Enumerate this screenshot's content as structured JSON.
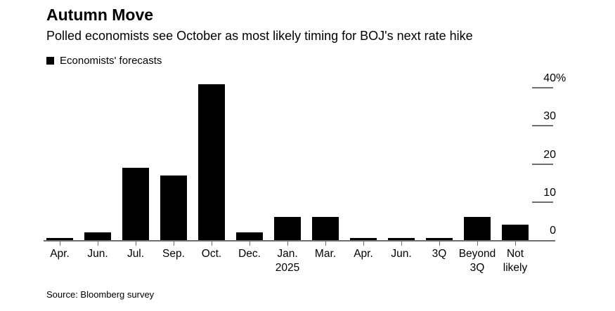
{
  "header": {
    "title": "Autumn Move",
    "subtitle": "Polled economists see October as most likely timing for BOJ's next rate hike"
  },
  "legend": {
    "label": "Economists' forecasts",
    "marker": "black-square",
    "marker_color": "#000000"
  },
  "chart_data": {
    "type": "bar",
    "title": "Autumn Move",
    "subtitle": "Polled economists see October as most likely timing for BOJ's next rate hike",
    "legend_entries": [
      "Economists' forecasts"
    ],
    "legend_position": "top-left",
    "categories": [
      [
        "Apr."
      ],
      [
        "Jun."
      ],
      [
        "Jul."
      ],
      [
        "Sep."
      ],
      [
        "Oct."
      ],
      [
        "Dec."
      ],
      [
        "Jan.",
        "2025"
      ],
      [
        "Mar."
      ],
      [
        "Apr."
      ],
      [
        "Jun."
      ],
      [
        "3Q"
      ],
      [
        "Beyond",
        "3Q"
      ],
      [
        "Not",
        "likely"
      ]
    ],
    "values": [
      0.5,
      2,
      19,
      17,
      41,
      2,
      6,
      6,
      0.5,
      0.5,
      0.5,
      6,
      4
    ],
    "unit": "%",
    "xlabel": "",
    "ylabel": "",
    "ylim": [
      0,
      43
    ],
    "y_ticks": [
      {
        "value": 40,
        "label": "40",
        "suffix": "%"
      },
      {
        "value": 30,
        "label": "30",
        "suffix": ""
      },
      {
        "value": 20,
        "label": "20",
        "suffix": ""
      },
      {
        "value": 10,
        "label": "10",
        "suffix": ""
      },
      {
        "value": 0,
        "label": "0",
        "suffix": ""
      }
    ],
    "grid": "off",
    "y_axis_side": "right",
    "bar_color": "#000000",
    "axis_color": "#6e6e6e"
  },
  "footer": {
    "source": "Source: Bloomberg survey"
  }
}
